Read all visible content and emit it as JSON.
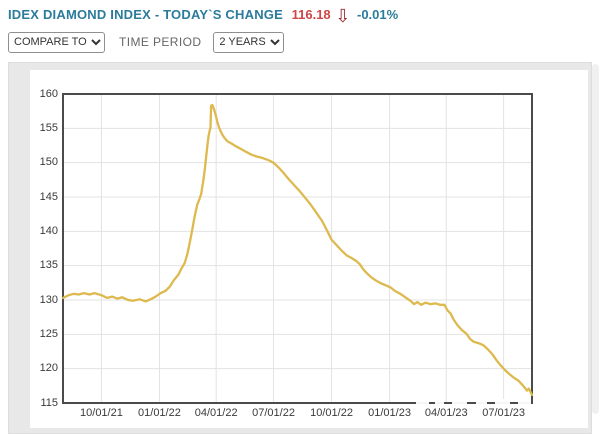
{
  "header": {
    "title": "IDEX DIAMOND INDEX - TODAY`S CHANGE",
    "value": "116.18",
    "arrow": "⇩",
    "change": "-0.01%"
  },
  "controls": {
    "compare_value": "COMPARE TO",
    "time_period_label": "TIME PERIOD",
    "period_value": "2 YEARS"
  },
  "colors": {
    "title_teal": "#2b7b9b",
    "value_red": "#cf4545",
    "arrow_red": "#97262c",
    "line_gold": "#ddb94e",
    "plot_border": "#4b4b4b",
    "gridline": "#e3e3e3",
    "tick_text": "#3a3a3a",
    "panel_gray": "#e8e8e8"
  },
  "chart_data": {
    "type": "line",
    "title": "",
    "xlabel": "",
    "ylabel": "",
    "grid": true,
    "legend": "none",
    "ylim": [
      115,
      160
    ],
    "y_ticks": [
      160,
      155,
      150,
      145,
      140,
      135,
      130,
      125,
      120,
      115
    ],
    "x_range": [
      "2021-08-01",
      "2023-08-15"
    ],
    "x_ticks": [
      {
        "date": "2021-10-01",
        "label": "10/01/21"
      },
      {
        "date": "2022-01-01",
        "label": "01/01/22"
      },
      {
        "date": "2022-04-01",
        "label": "04/01/22"
      },
      {
        "date": "2022-07-01",
        "label": "07/01/22"
      },
      {
        "date": "2022-10-01",
        "label": "10/01/22"
      },
      {
        "date": "2023-01-01",
        "label": "01/01/23"
      },
      {
        "date": "2023-04-01",
        "label": "04/01/23"
      },
      {
        "date": "2023-07-01",
        "label": "07/01/23"
      }
    ],
    "series": [
      {
        "name": "IDEX Diamond Index",
        "color": "#ddb94e",
        "points": [
          [
            "2021-08-01",
            130.3
          ],
          [
            "2021-08-10",
            130.7
          ],
          [
            "2021-08-18",
            130.9
          ],
          [
            "2021-08-26",
            130.8
          ],
          [
            "2021-09-03",
            131.0
          ],
          [
            "2021-09-12",
            130.8
          ],
          [
            "2021-09-20",
            131.0
          ],
          [
            "2021-10-01",
            130.7
          ],
          [
            "2021-10-10",
            130.3
          ],
          [
            "2021-10-18",
            130.5
          ],
          [
            "2021-10-26",
            130.2
          ],
          [
            "2021-11-03",
            130.4
          ],
          [
            "2021-11-12",
            130.0
          ],
          [
            "2021-11-20",
            129.9
          ],
          [
            "2021-12-01",
            130.1
          ],
          [
            "2021-12-10",
            129.8
          ],
          [
            "2021-12-18",
            130.1
          ],
          [
            "2021-12-26",
            130.5
          ],
          [
            "2022-01-03",
            131.0
          ],
          [
            "2022-01-10",
            131.3
          ],
          [
            "2022-01-17",
            131.9
          ],
          [
            "2022-01-24",
            132.9
          ],
          [
            "2022-01-31",
            133.7
          ],
          [
            "2022-02-05",
            134.6
          ],
          [
            "2022-02-10",
            135.4
          ],
          [
            "2022-02-14",
            136.6
          ],
          [
            "2022-02-18",
            138.3
          ],
          [
            "2022-02-22",
            140.2
          ],
          [
            "2022-02-26",
            142.2
          ],
          [
            "2022-03-02",
            143.9
          ],
          [
            "2022-03-05",
            144.6
          ],
          [
            "2022-03-08",
            145.4
          ],
          [
            "2022-03-11",
            147.0
          ],
          [
            "2022-03-14",
            149.0
          ],
          [
            "2022-03-16",
            150.8
          ],
          [
            "2022-03-18",
            152.5
          ],
          [
            "2022-03-20",
            153.9
          ],
          [
            "2022-03-22",
            154.8
          ],
          [
            "2022-03-23",
            155.1
          ],
          [
            "2022-03-24",
            158.3
          ],
          [
            "2022-03-26",
            158.4
          ],
          [
            "2022-03-28",
            157.9
          ],
          [
            "2022-03-31",
            157.0
          ],
          [
            "2022-04-03",
            155.9
          ],
          [
            "2022-04-06",
            155.0
          ],
          [
            "2022-04-10",
            154.2
          ],
          [
            "2022-04-14",
            153.6
          ],
          [
            "2022-04-19",
            153.1
          ],
          [
            "2022-04-25",
            152.8
          ],
          [
            "2022-05-02",
            152.4
          ],
          [
            "2022-05-10",
            152.0
          ],
          [
            "2022-05-18",
            151.6
          ],
          [
            "2022-05-26",
            151.2
          ],
          [
            "2022-06-04",
            150.9
          ],
          [
            "2022-06-13",
            150.7
          ],
          [
            "2022-06-22",
            150.4
          ],
          [
            "2022-07-01",
            150.0
          ],
          [
            "2022-07-09",
            149.3
          ],
          [
            "2022-07-17",
            148.5
          ],
          [
            "2022-07-25",
            147.6
          ],
          [
            "2022-08-02",
            146.8
          ],
          [
            "2022-08-11",
            145.9
          ],
          [
            "2022-08-20",
            144.9
          ],
          [
            "2022-08-29",
            143.9
          ],
          [
            "2022-09-07",
            142.7
          ],
          [
            "2022-09-16",
            141.5
          ],
          [
            "2022-09-24",
            140.1
          ],
          [
            "2022-10-01",
            138.8
          ],
          [
            "2022-10-09",
            138.0
          ],
          [
            "2022-10-17",
            137.2
          ],
          [
            "2022-10-25",
            136.5
          ],
          [
            "2022-11-02",
            136.1
          ],
          [
            "2022-11-09",
            135.7
          ],
          [
            "2022-11-15",
            135.2
          ],
          [
            "2022-11-20",
            134.5
          ],
          [
            "2022-11-26",
            133.9
          ],
          [
            "2022-12-03",
            133.3
          ],
          [
            "2022-12-11",
            132.8
          ],
          [
            "2022-12-19",
            132.4
          ],
          [
            "2022-12-27",
            132.1
          ],
          [
            "2023-01-03",
            131.8
          ],
          [
            "2023-01-10",
            131.3
          ],
          [
            "2023-01-18",
            130.9
          ],
          [
            "2023-01-26",
            130.4
          ],
          [
            "2023-02-03",
            129.9
          ],
          [
            "2023-02-09",
            129.4
          ],
          [
            "2023-02-14",
            129.7
          ],
          [
            "2023-02-20",
            129.3
          ],
          [
            "2023-02-27",
            129.6
          ],
          [
            "2023-03-07",
            129.4
          ],
          [
            "2023-03-15",
            129.5
          ],
          [
            "2023-03-22",
            129.3
          ],
          [
            "2023-03-29",
            129.3
          ],
          [
            "2023-04-03",
            128.5
          ],
          [
            "2023-04-08",
            128.0
          ],
          [
            "2023-04-13",
            127.1
          ],
          [
            "2023-04-19",
            126.3
          ],
          [
            "2023-04-26",
            125.6
          ],
          [
            "2023-05-03",
            125.1
          ],
          [
            "2023-05-09",
            124.3
          ],
          [
            "2023-05-15",
            123.9
          ],
          [
            "2023-05-23",
            123.7
          ],
          [
            "2023-05-30",
            123.4
          ],
          [
            "2023-06-06",
            122.8
          ],
          [
            "2023-06-13",
            122.1
          ],
          [
            "2023-06-19",
            121.3
          ],
          [
            "2023-06-26",
            120.5
          ],
          [
            "2023-07-02",
            119.9
          ],
          [
            "2023-07-09",
            119.3
          ],
          [
            "2023-07-17",
            118.7
          ],
          [
            "2023-07-25",
            118.2
          ],
          [
            "2023-08-02",
            117.4
          ],
          [
            "2023-08-07",
            116.8
          ],
          [
            "2023-08-10",
            117.1
          ],
          [
            "2023-08-15",
            116.2
          ]
        ]
      }
    ]
  }
}
